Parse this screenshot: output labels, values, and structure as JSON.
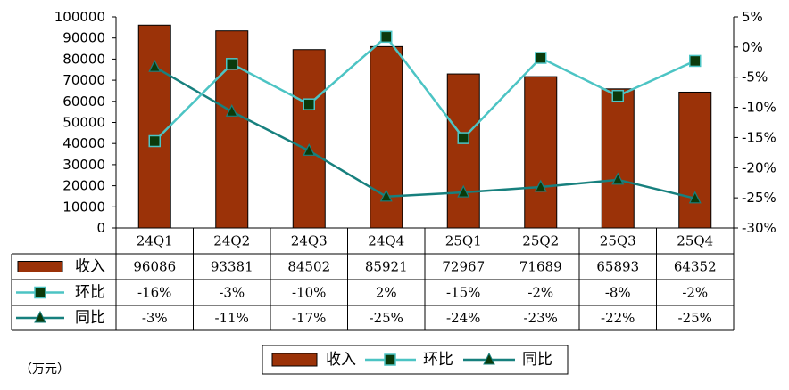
{
  "chart_data": {
    "type": "bar",
    "categories": [
      "24Q1",
      "24Q2",
      "24Q3",
      "24Q4",
      "25Q1",
      "25Q2",
      "25Q3",
      "25Q4"
    ],
    "series": [
      {
        "name": "收入",
        "kind": "bar",
        "axis": "left",
        "values": [
          96086,
          93381,
          84502,
          85921,
          72967,
          71689,
          65893,
          64352
        ],
        "labels": [
          "96086",
          "93381",
          "84502",
          "85921",
          "72967",
          "71689",
          "65893",
          "64352"
        ]
      },
      {
        "name": "环比",
        "kind": "line",
        "axis": "right",
        "marker": "square",
        "values": [
          -15.6,
          -2.8,
          -9.5,
          1.7,
          -15.1,
          -1.8,
          -8.1,
          -2.3
        ],
        "labels": [
          "-16%",
          "-3%",
          "-10%",
          "2%",
          "-15%",
          "-2%",
          "-8%",
          "-2%"
        ]
      },
      {
        "name": "同比",
        "kind": "line",
        "axis": "right",
        "marker": "triangle",
        "values": [
          -3.3,
          -10.7,
          -17.2,
          -24.8,
          -24.1,
          -23.2,
          -22.0,
          -25.1
        ],
        "labels": [
          "-3%",
          "-11%",
          "-17%",
          "-25%",
          "-24%",
          "-23%",
          "-22%",
          "-25%"
        ]
      }
    ],
    "y_left": {
      "min": 0,
      "max": 100000,
      "step": 10000,
      "ticks": [
        "0",
        "10000",
        "20000",
        "30000",
        "40000",
        "50000",
        "60000",
        "70000",
        "80000",
        "90000",
        "100000"
      ]
    },
    "y_right": {
      "min": -30,
      "max": 5,
      "step": 5,
      "ticks": [
        "-30%",
        "-25%",
        "-20%",
        "-15%",
        "-10%",
        "-5%",
        "0%",
        "5%"
      ]
    },
    "unit_label": "（万元）",
    "legend_position": "bottom-center",
    "data_table": true,
    "colors": {
      "bar": "#9b3208",
      "bar_stroke": "#000000",
      "mom": "#4cc4c4",
      "yoy": "#17807e",
      "marker_fill": "#0b3a0b"
    }
  }
}
